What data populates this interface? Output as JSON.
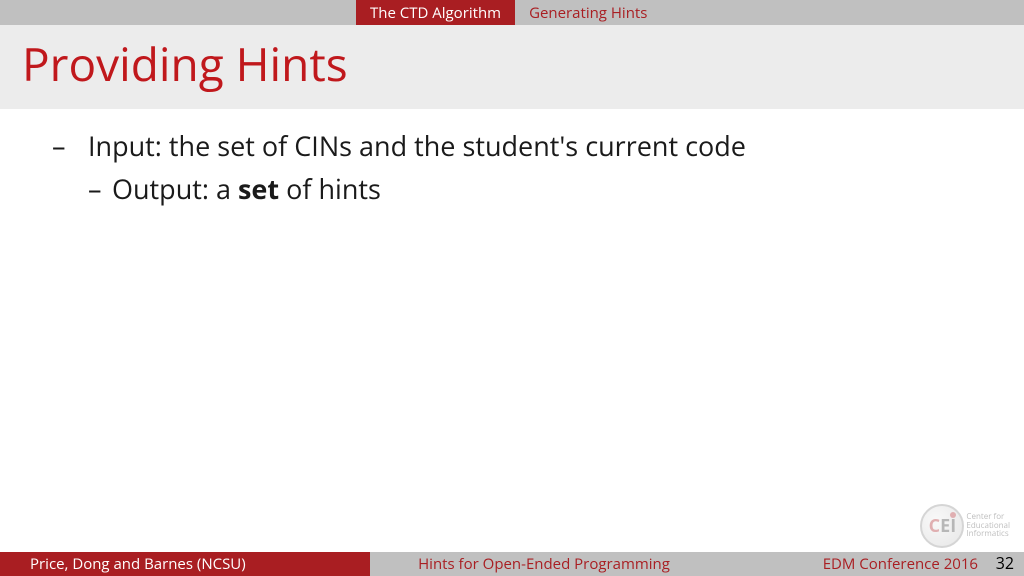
{
  "topbar": {
    "tab_active": "The CTD Algorithm",
    "tab_inactive": "Generating Hints"
  },
  "title": "Providing Hints",
  "bullets": {
    "l1": "Input: the set of CINs and the student's current code",
    "l2_pre": "Output: a ",
    "l2_bold": "set",
    "l2_post": " of hints"
  },
  "logo": {
    "line1": "Center for",
    "line2": "Educational",
    "line3": "Informatics"
  },
  "footer": {
    "left": "Price, Dong and Barnes (NCSU)",
    "mid": "Hints for Open-Ended Programming",
    "right": "EDM Conference 2016",
    "page": "32"
  },
  "colors": {
    "brand_red": "#a91e22",
    "title_red": "#c0181c",
    "grey_bar": "#c0c0c0",
    "title_band": "#ececec"
  }
}
